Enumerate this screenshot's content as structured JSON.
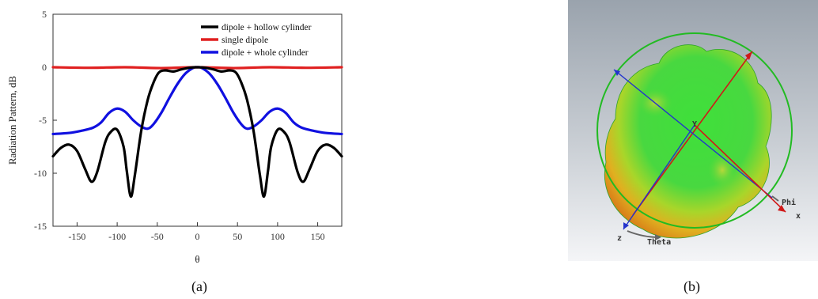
{
  "chart_data": {
    "type": "line",
    "xlabel": "θ",
    "ylabel": "Radiation Pattern, dB",
    "xlim": [
      -180,
      180
    ],
    "ylim": [
      -15,
      5
    ],
    "xticks": [
      -150,
      -100,
      -50,
      0,
      50,
      100,
      150
    ],
    "yticks": [
      5,
      0,
      -5,
      -10,
      -15
    ],
    "legend_position": "top-right",
    "grid": false,
    "series": [
      {
        "name": "dipole + hollow cylinder",
        "color": "#000000",
        "x": [
          -180,
          -170,
          -160,
          -150,
          -140,
          -132,
          -125,
          -115,
          -108,
          -100,
          -92,
          -88,
          -83,
          -78,
          -70,
          -62,
          -55,
          -48,
          -40,
          -30,
          -20,
          -10,
          0,
          10,
          20,
          30,
          40,
          48,
          55,
          62,
          70,
          78,
          83,
          88,
          92,
          100,
          108,
          115,
          125,
          132,
          140,
          150,
          160,
          170,
          180
        ],
        "y": [
          -8.4,
          -7.6,
          -7.3,
          -7.9,
          -9.6,
          -10.8,
          -9.9,
          -7.1,
          -6.1,
          -5.9,
          -7.5,
          -9.8,
          -12.2,
          -10.2,
          -6.0,
          -3.1,
          -1.5,
          -0.5,
          -0.3,
          -0.4,
          -0.2,
          -0.05,
          0,
          -0.05,
          -0.2,
          -0.4,
          -0.3,
          -0.5,
          -1.5,
          -3.1,
          -6.0,
          -10.2,
          -12.2,
          -9.8,
          -7.5,
          -5.9,
          -6.1,
          -7.1,
          -9.9,
          -10.8,
          -9.6,
          -7.9,
          -7.3,
          -7.6,
          -8.4
        ]
      },
      {
        "name": "single dipole",
        "color": "#e02020",
        "x": [
          -180,
          -135,
          -90,
          -45,
          0,
          45,
          90,
          135,
          180
        ],
        "y": [
          0,
          -0.05,
          0,
          -0.08,
          0,
          -0.08,
          0,
          -0.05,
          0
        ]
      },
      {
        "name": "dipole + whole cylinder",
        "color": "#1010e0",
        "x": [
          -180,
          -160,
          -145,
          -130,
          -120,
          -110,
          -100,
          -90,
          -80,
          -70,
          -62,
          -55,
          -45,
          -35,
          -25,
          -15,
          -5,
          0,
          5,
          15,
          25,
          35,
          45,
          55,
          62,
          70,
          80,
          90,
          100,
          110,
          120,
          130,
          145,
          160,
          180
        ],
        "y": [
          -6.3,
          -6.2,
          -6.0,
          -5.7,
          -5.2,
          -4.3,
          -3.9,
          -4.2,
          -5.0,
          -5.6,
          -5.8,
          -5.4,
          -4.3,
          -2.9,
          -1.6,
          -0.6,
          -0.05,
          0,
          -0.05,
          -0.6,
          -1.6,
          -2.9,
          -4.3,
          -5.4,
          -5.8,
          -5.6,
          -5.0,
          -4.2,
          -3.9,
          -4.3,
          -5.2,
          -5.7,
          -6.0,
          -6.2,
          -6.3
        ]
      }
    ]
  },
  "captions": {
    "a": "(a)",
    "b": "(b)"
  },
  "panel_b_labels": {
    "y": "Y",
    "z": "z",
    "x": "x",
    "theta": "Theta",
    "phi": "Phi"
  }
}
